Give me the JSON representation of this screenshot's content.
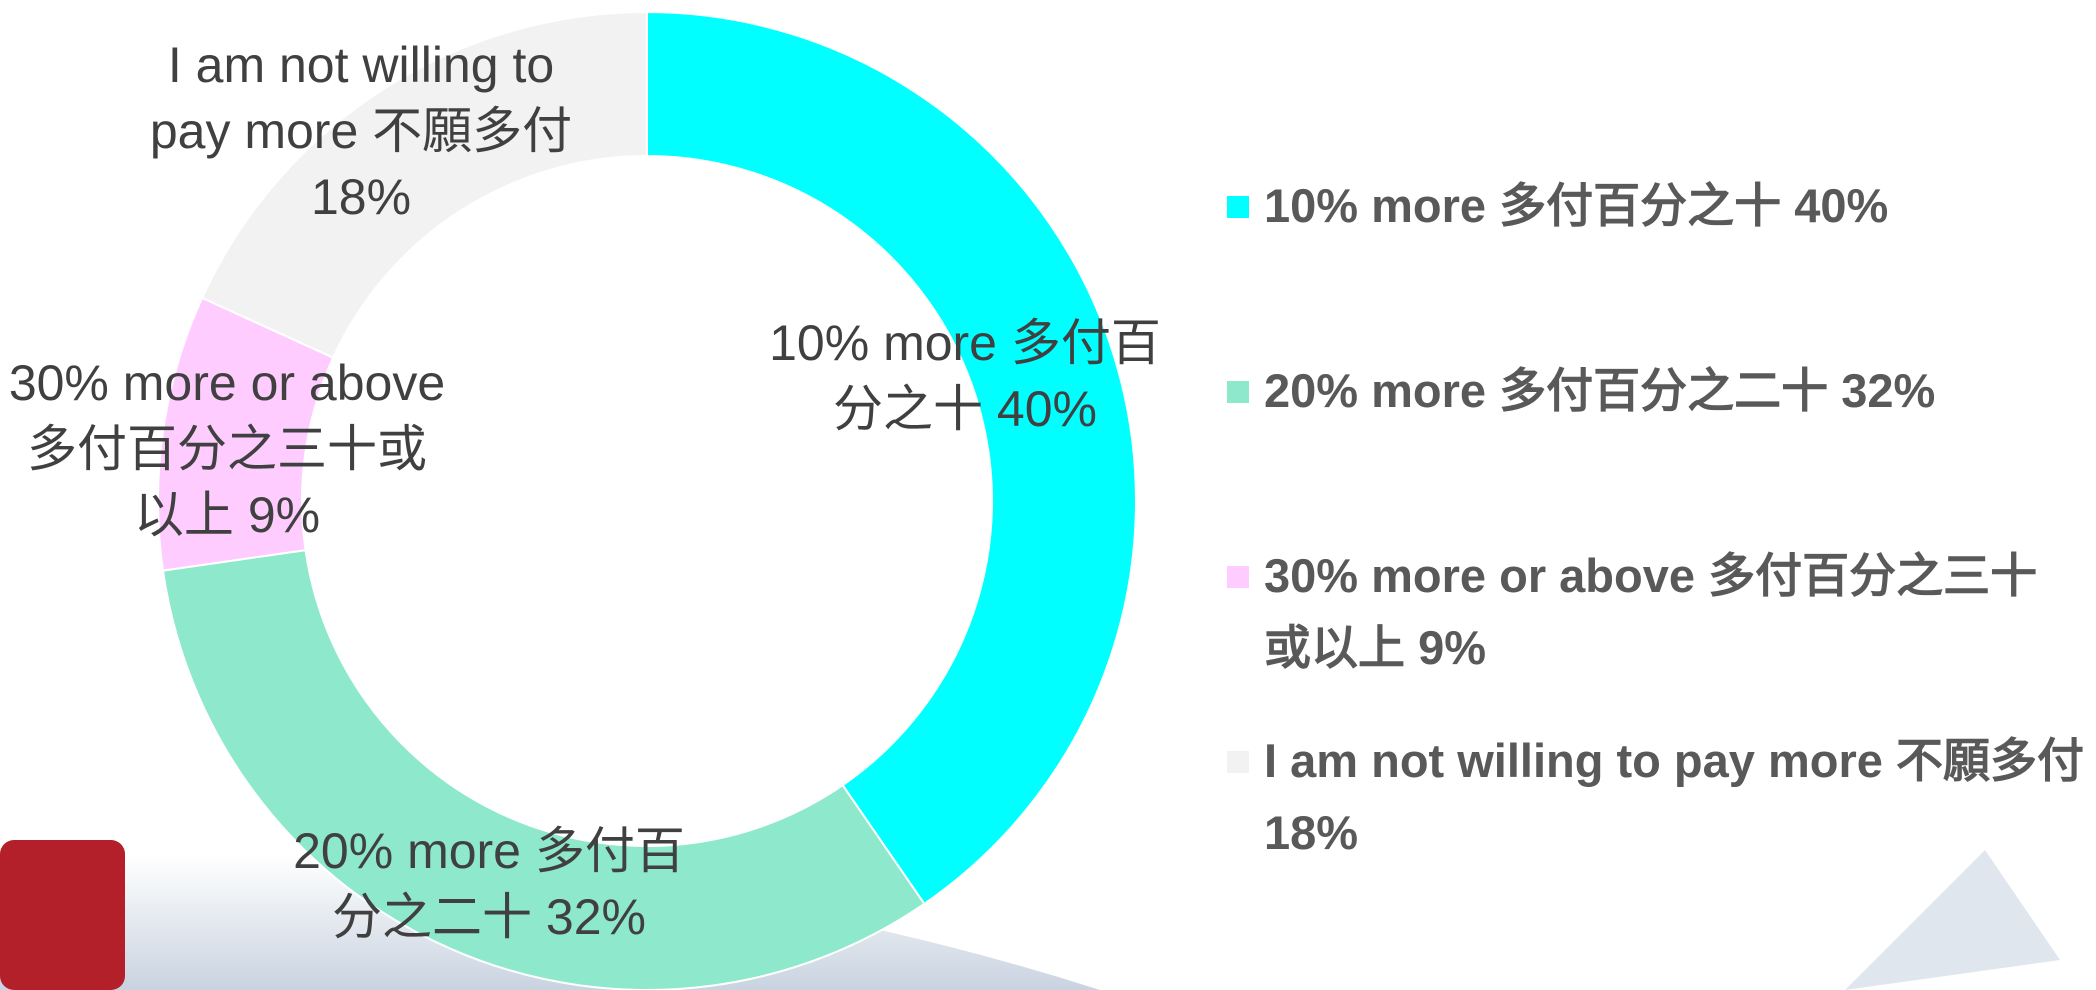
{
  "chart_data": {
    "type": "donut",
    "categories": [
      "10% more 多付百分之十",
      "20% more 多付百分之二十",
      "30% more or above 多付百分之三十或以上",
      "I am not willing to pay more 不願多付"
    ],
    "values": [
      40,
      32,
      9,
      18
    ],
    "value_labels": [
      "40%",
      "32%",
      "9%",
      "18%"
    ],
    "colors": [
      "#00ffff",
      "#8ee8cc",
      "#ffccff",
      "#f2f2f2"
    ],
    "legend": "right"
  }
}
